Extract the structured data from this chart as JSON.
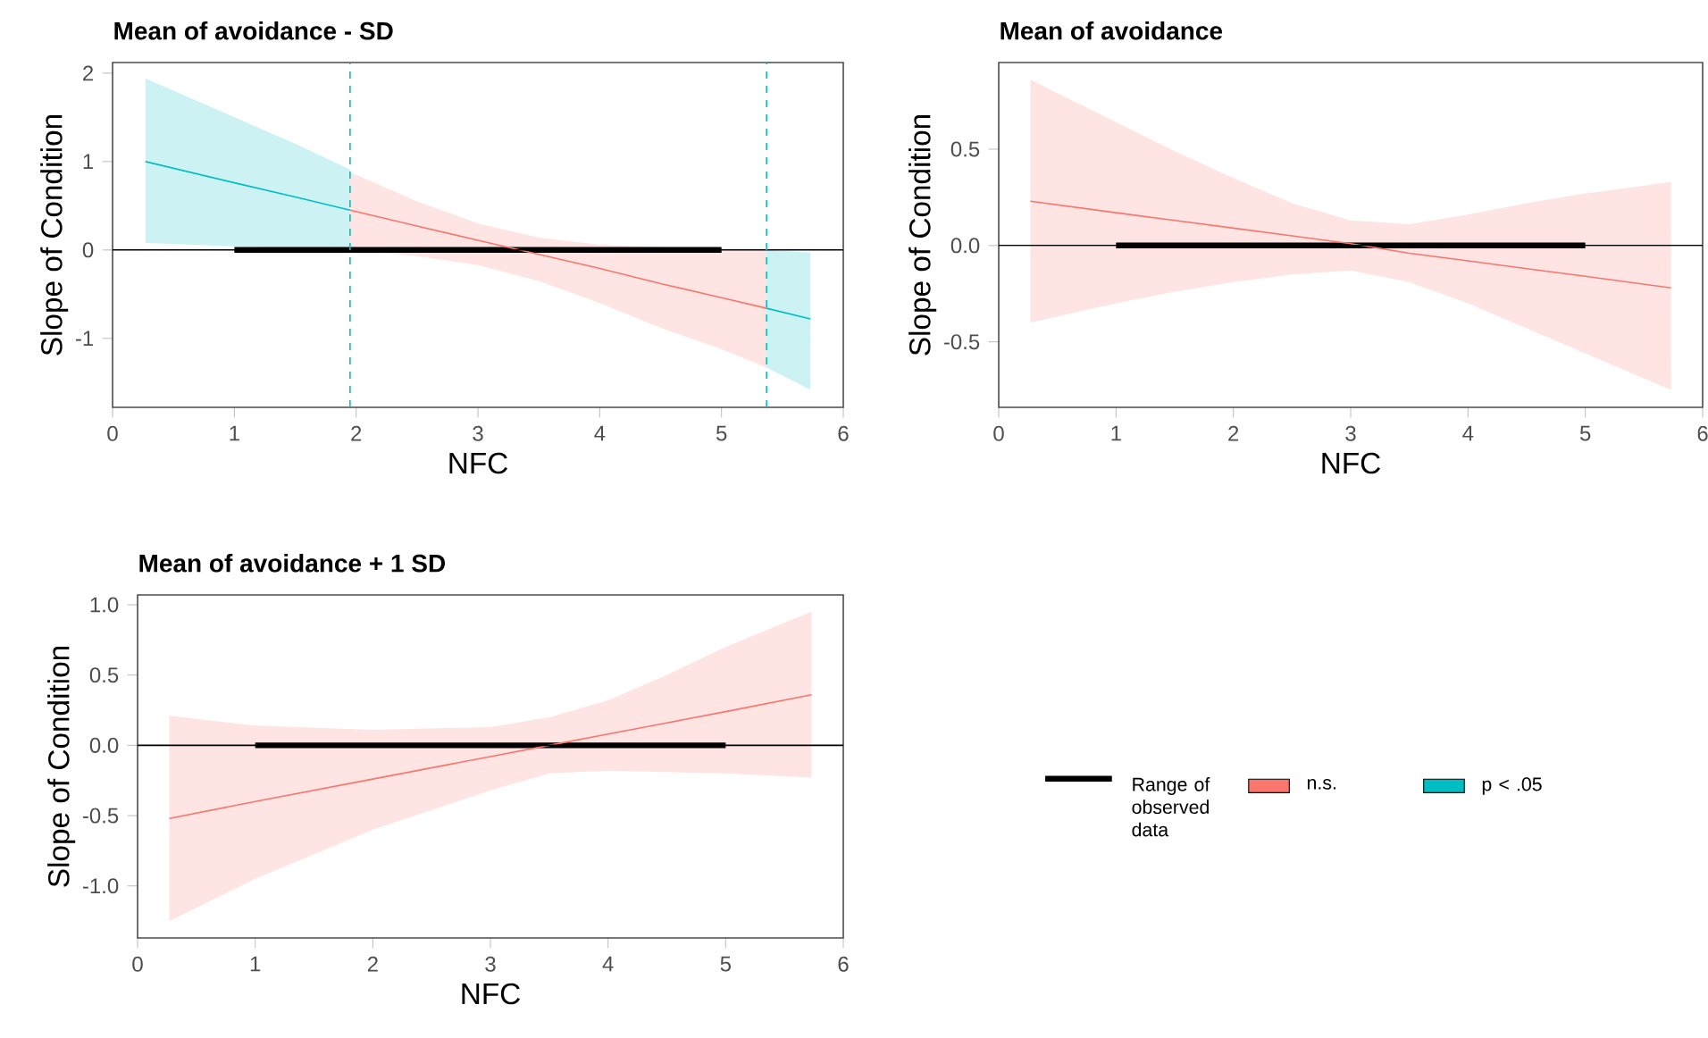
{
  "chart_data": [
    {
      "type": "line",
      "title": "Mean of avoidance - SD",
      "xlabel": "NFC",
      "ylabel": "Slope of Condition",
      "xlim": [
        0,
        6
      ],
      "xticks": [
        0,
        1,
        2,
        3,
        4,
        5,
        6
      ],
      "ylim": [
        -1.78,
        2.12
      ],
      "yticks": [
        -1,
        0,
        1,
        2
      ],
      "legend": "bottom right",
      "series": [
        {
          "name": "Range of observed data",
          "color": "#000000",
          "x": [
            1,
            5
          ],
          "values": [
            0,
            0
          ]
        },
        {
          "name": "n.s.",
          "color": "#f8766d",
          "x": [
            1.95,
            2.5,
            3,
            3.5,
            4,
            4.5,
            5,
            5.37
          ],
          "values": [
            0.45,
            0.27,
            0.11,
            -0.05,
            -0.21,
            -0.38,
            -0.54,
            -0.66
          ],
          "upper": [
            0.88,
            0.55,
            0.3,
            0.14,
            0.06,
            0.03,
            0.01,
            0.0
          ],
          "lower": [
            0.0,
            -0.07,
            -0.17,
            -0.35,
            -0.6,
            -0.88,
            -1.12,
            -1.33
          ]
        },
        {
          "name": "p < .05",
          "color": "#00bfc4",
          "x": [
            0.27,
            1,
            1.5,
            1.95
          ],
          "values": [
            1.0,
            0.76,
            0.6,
            0.45
          ],
          "upper": [
            1.94,
            1.5,
            1.2,
            0.91
          ],
          "lower": [
            0.08,
            0.04,
            0.02,
            0.0
          ]
        },
        {
          "color": "#00bfc4",
          "x": [
            5.37,
            5.73
          ],
          "values": [
            -0.66,
            -0.78
          ],
          "upper": [
            0.0,
            -0.03
          ],
          "lower": [
            -1.33,
            -1.58
          ]
        }
      ],
      "ref_lines": [
        {
          "axis": "y",
          "value": 0,
          "color": "#000000",
          "line_style": "solid"
        },
        {
          "axis": "x",
          "value": 1.95,
          "color": "#00bfc4",
          "line_style": "dashed"
        },
        {
          "axis": "x",
          "value": 5.37,
          "color": "#00bfc4",
          "line_style": "dashed"
        }
      ]
    },
    {
      "type": "line",
      "title": "Mean of avoidance",
      "xlabel": "NFC",
      "ylabel": "Slope of Condition",
      "xlim": [
        0,
        6
      ],
      "xticks": [
        0,
        1,
        2,
        3,
        4,
        5,
        6
      ],
      "ylim": [
        -0.84,
        0.95
      ],
      "yticks": [
        -0.5,
        {
          "value": 0,
          "label": "0.0"
        },
        0.5
      ],
      "series": [
        {
          "color": "#000000",
          "x": [
            1,
            5
          ],
          "values": [
            0,
            0
          ]
        },
        {
          "color": "#f8766d",
          "x": [
            0.27,
            1,
            1.5,
            2,
            2.5,
            3,
            3.5,
            4,
            4.5,
            5,
            5.73
          ],
          "values": [
            0.23,
            0.17,
            0.13,
            0.09,
            0.05,
            0.01,
            -0.04,
            -0.08,
            -0.12,
            -0.16,
            -0.22
          ],
          "upper": [
            0.86,
            0.64,
            0.49,
            0.35,
            0.22,
            0.13,
            0.11,
            0.16,
            0.22,
            0.27,
            0.33
          ],
          "lower": [
            -0.4,
            -0.3,
            -0.24,
            -0.19,
            -0.15,
            -0.13,
            -0.19,
            -0.3,
            -0.43,
            -0.56,
            -0.75
          ]
        }
      ],
      "ref_lines": [
        {
          "axis": "y",
          "value": 0,
          "color": "#000000",
          "line_style": "solid"
        }
      ]
    },
    {
      "type": "line",
      "title": "Mean of avoidance + 1 SD",
      "xlabel": "NFC",
      "ylabel": "Slope of Condition",
      "xlim": [
        0,
        6
      ],
      "xticks": [
        0,
        1,
        2,
        3,
        4,
        5,
        6
      ],
      "ylim": [
        -1.37,
        1.07
      ],
      "yticks": [
        {
          "value": -1,
          "label": "-1.0"
        },
        -0.5,
        {
          "value": 0,
          "label": "0.0"
        },
        0.5,
        {
          "value": 1,
          "label": "1.0"
        }
      ],
      "series": [
        {
          "color": "#000000",
          "x": [
            1,
            5
          ],
          "values": [
            0,
            0
          ]
        },
        {
          "color": "#f8766d",
          "x": [
            0.27,
            1,
            2,
            3,
            3.5,
            4,
            4.5,
            5,
            5.73
          ],
          "values": [
            -0.52,
            -0.4,
            -0.24,
            -0.08,
            0.0,
            0.08,
            0.16,
            0.24,
            0.36
          ],
          "upper": [
            0.21,
            0.14,
            0.11,
            0.13,
            0.2,
            0.32,
            0.5,
            0.7,
            0.95
          ],
          "lower": [
            -1.25,
            -0.95,
            -0.6,
            -0.32,
            -0.2,
            -0.18,
            -0.19,
            -0.2,
            -0.23
          ]
        }
      ],
      "ref_lines": [
        {
          "axis": "y",
          "value": 0,
          "color": "#000000",
          "line_style": "solid"
        }
      ]
    }
  ]
}
